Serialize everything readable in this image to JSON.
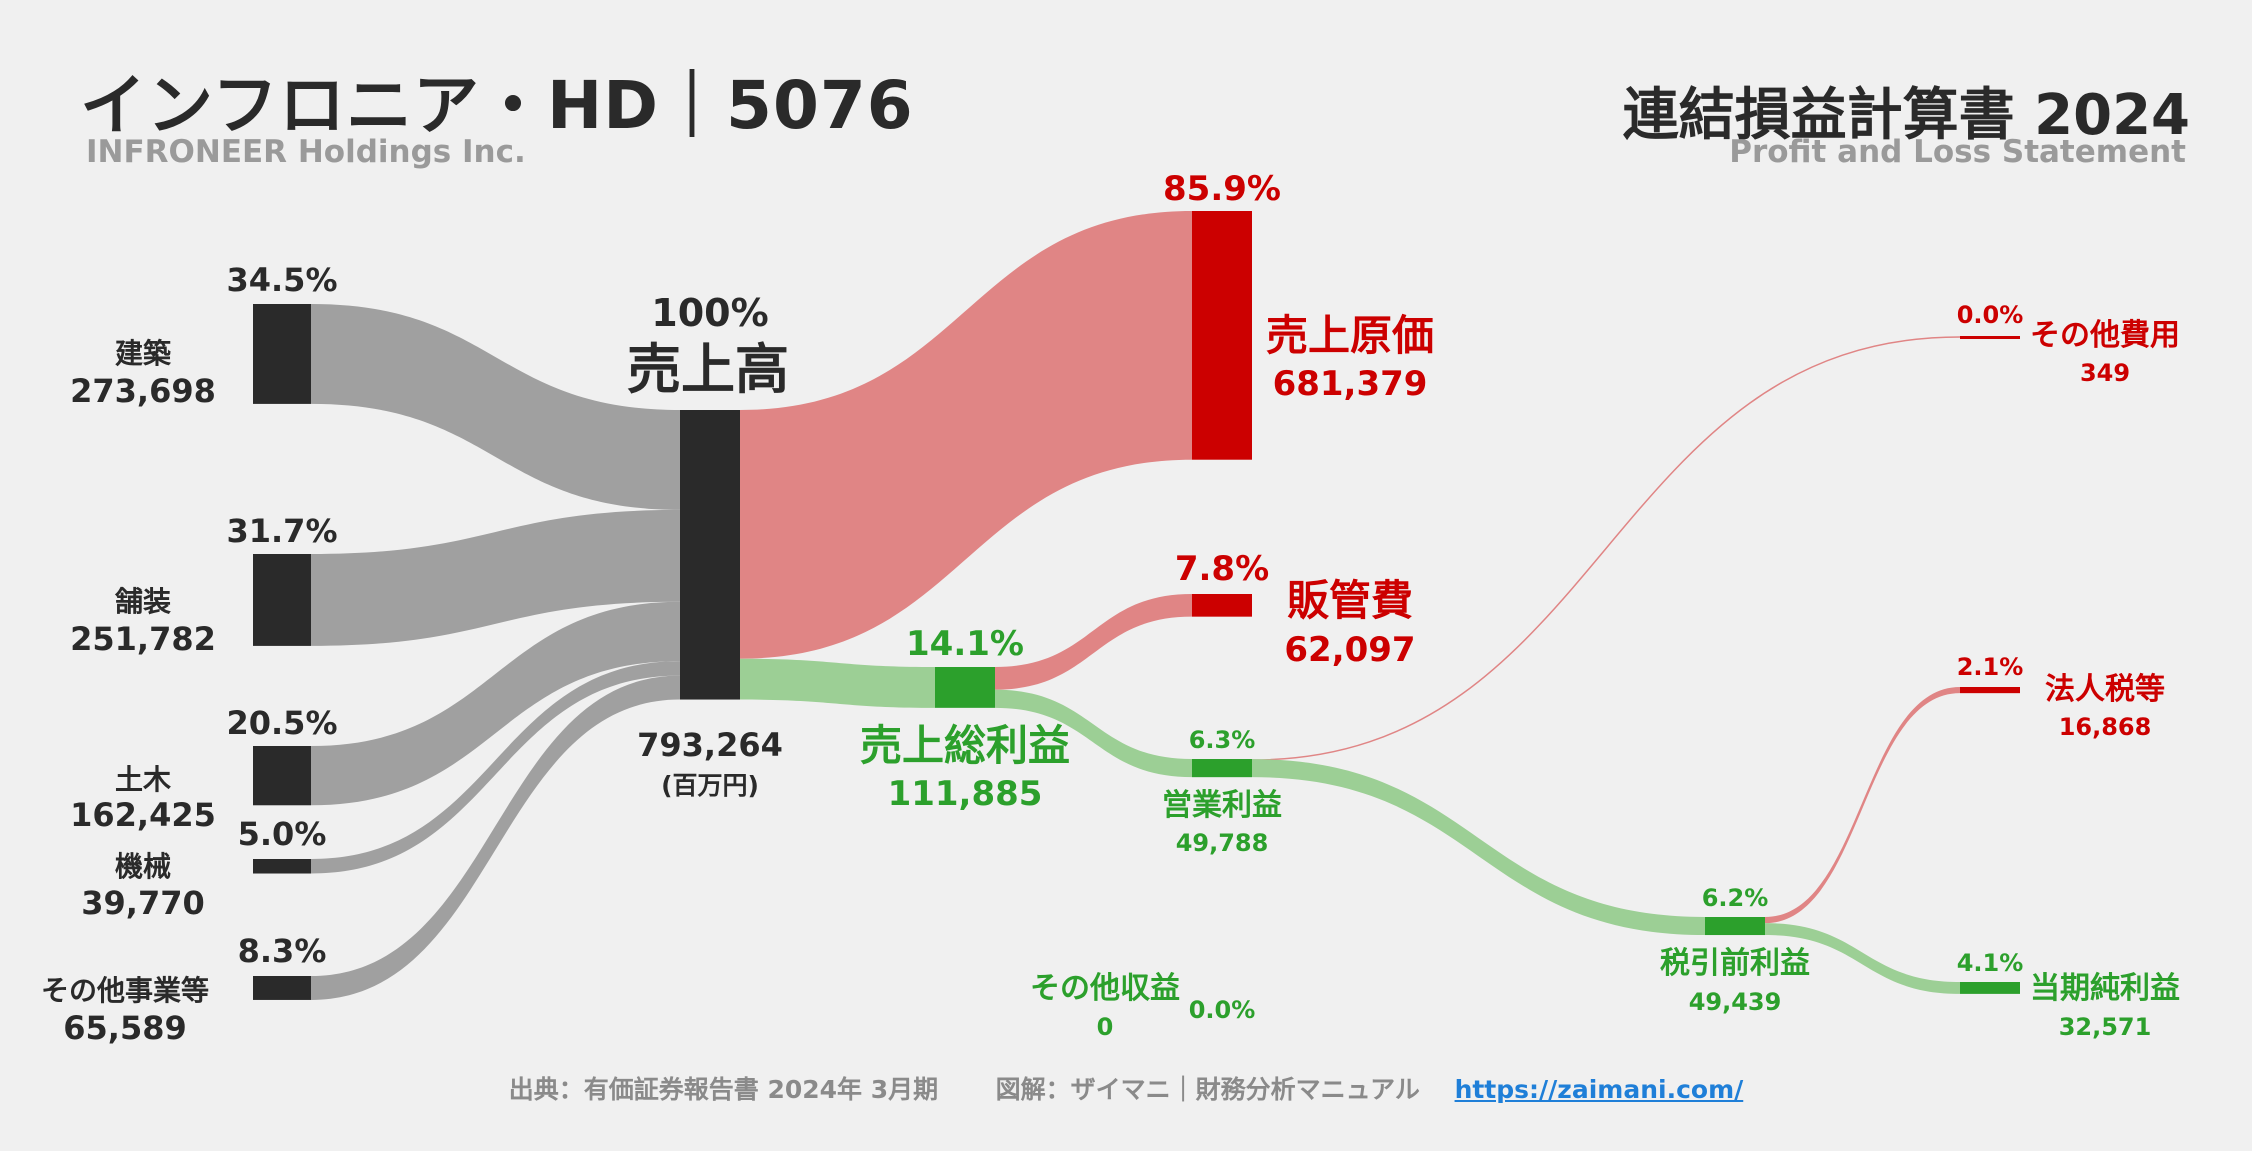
{
  "header": {
    "company": "インフロニア・HD｜5076",
    "company_en": "INFRONEER Holdings Inc.",
    "statement": "連結損益計算書 2024",
    "statement_en": "Profit and Loss Statement"
  },
  "footer": {
    "source": "出典：有価証券報告書 2024年 3月期",
    "credit": "図解：ザイマニ｜財務分析マニュアル",
    "link": "https://zaimani.com/"
  },
  "colors": {
    "segment": "#2a2a2a",
    "segment_flow": "#a0a0a0",
    "cost": "#cc0000",
    "cost_flow": "#e08585",
    "profit": "#2ca02c",
    "profit_flow": "#9ccf95",
    "text_dark": "#2a2a2a"
  },
  "chart_data": {
    "type": "sankey",
    "unit": "(百万円)",
    "revenue": {
      "label": "売上高",
      "value": 793264,
      "value_label": "793,264",
      "pct": "100%"
    },
    "segments": [
      {
        "label": "建築",
        "value": 273698,
        "value_label": "273,698",
        "pct": "34.5%"
      },
      {
        "label": "舗装",
        "value": 251782,
        "value_label": "251,782",
        "pct": "31.7%"
      },
      {
        "label": "土木",
        "value": 162425,
        "value_label": "162,425",
        "pct": "20.5%"
      },
      {
        "label": "機械",
        "value": 39770,
        "value_label": "39,770",
        "pct": "5.0%"
      },
      {
        "label": "その他事業等",
        "value": 65589,
        "value_label": "65,589",
        "pct": "8.3%"
      }
    ],
    "cost_of_sales": {
      "label": "売上原価",
      "value": 681379,
      "value_label": "681,379",
      "pct": "85.9%"
    },
    "gross_profit": {
      "label": "売上総利益",
      "value": 111885,
      "value_label": "111,885",
      "pct": "14.1%"
    },
    "sga": {
      "label": "販管費",
      "value": 62097,
      "value_label": "62,097",
      "pct": "7.8%"
    },
    "operating_income": {
      "label": "営業利益",
      "value": 49788,
      "value_label": "49,788",
      "pct": "6.3%"
    },
    "other_expenses": {
      "label": "その他費用",
      "value": 349,
      "value_label": "349",
      "pct": "0.0%"
    },
    "other_income": {
      "label": "その他収益",
      "value": 0,
      "value_label": "0",
      "pct": "0.0%"
    },
    "pretax_income": {
      "label": "税引前利益",
      "value": 49439,
      "value_label": "49,439",
      "pct": "6.2%"
    },
    "income_taxes": {
      "label": "法人税等",
      "value": 16868,
      "value_label": "16,868",
      "pct": "2.1%"
    },
    "net_income": {
      "label": "当期純利益",
      "value": 32571,
      "value_label": "32,571",
      "pct": "4.1%"
    }
  }
}
